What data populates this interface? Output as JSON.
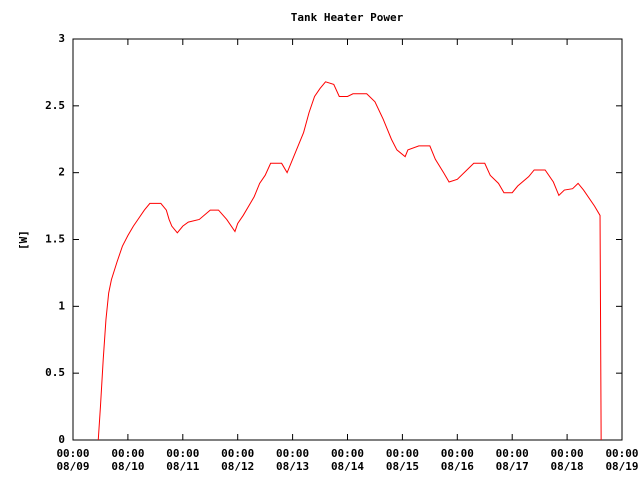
{
  "chart_data": {
    "type": "line",
    "title": "Tank Heater Power",
    "y_label": "[W]",
    "xlim": [
      0,
      10
    ],
    "ylim": [
      0,
      3
    ],
    "yticks": [
      0,
      0.5,
      1,
      1.5,
      2,
      2.5,
      3
    ],
    "xticks": [
      {
        "value": 0,
        "label": [
          "00:00",
          "08/09"
        ]
      },
      {
        "value": 1,
        "label": [
          "00:00",
          "08/10"
        ]
      },
      {
        "value": 2,
        "label": [
          "00:00",
          "08/11"
        ]
      },
      {
        "value": 3,
        "label": [
          "00:00",
          "08/12"
        ]
      },
      {
        "value": 4,
        "label": [
          "00:00",
          "08/13"
        ]
      },
      {
        "value": 5,
        "label": [
          "00:00",
          "08/14"
        ]
      },
      {
        "value": 6,
        "label": [
          "00:00",
          "08/15"
        ]
      },
      {
        "value": 7,
        "label": [
          "00:00",
          "08/16"
        ]
      },
      {
        "value": 8,
        "label": [
          "00:00",
          "08/17"
        ]
      },
      {
        "value": 9,
        "label": [
          "00:00",
          "08/18"
        ]
      },
      {
        "value": 10,
        "label": [
          "00:00",
          "08/19"
        ]
      }
    ],
    "series": [
      {
        "color": "#ff0000",
        "x": [
          0.46,
          0.5,
          0.55,
          0.6,
          0.65,
          0.7,
          0.8,
          0.9,
          1.0,
          1.1,
          1.2,
          1.3,
          1.4,
          1.6,
          1.7,
          1.75,
          1.8,
          1.9,
          2.0,
          2.1,
          2.3,
          2.5,
          2.65,
          2.8,
          2.95,
          3.0,
          3.1,
          3.2,
          3.3,
          3.4,
          3.5,
          3.6,
          3.8,
          3.9,
          4.0,
          4.1,
          4.2,
          4.3,
          4.4,
          4.5,
          4.6,
          4.75,
          4.85,
          5.0,
          5.1,
          5.35,
          5.5,
          5.65,
          5.8,
          5.9,
          6.05,
          6.1,
          6.3,
          6.5,
          6.6,
          6.75,
          6.85,
          7.0,
          7.2,
          7.3,
          7.5,
          7.6,
          7.75,
          7.85,
          8.0,
          8.1,
          8.3,
          8.4,
          8.6,
          8.75,
          8.85,
          8.95,
          9.1,
          9.2,
          9.3,
          9.5,
          9.6,
          9.62
        ],
        "values": [
          0,
          0.25,
          0.6,
          0.9,
          1.1,
          1.2,
          1.33,
          1.45,
          1.53,
          1.6,
          1.66,
          1.72,
          1.77,
          1.77,
          1.72,
          1.65,
          1.6,
          1.55,
          1.6,
          1.63,
          1.65,
          1.72,
          1.72,
          1.65,
          1.56,
          1.62,
          1.68,
          1.75,
          1.82,
          1.92,
          1.98,
          2.07,
          2.07,
          2.0,
          2.1,
          2.2,
          2.3,
          2.45,
          2.57,
          2.63,
          2.68,
          2.66,
          2.57,
          2.57,
          2.59,
          2.59,
          2.53,
          2.4,
          2.25,
          2.17,
          2.12,
          2.17,
          2.2,
          2.2,
          2.1,
          2.0,
          1.93,
          1.95,
          2.03,
          2.07,
          2.07,
          1.98,
          1.92,
          1.85,
          1.85,
          1.9,
          1.97,
          2.02,
          2.02,
          1.93,
          1.83,
          1.87,
          1.88,
          1.92,
          1.87,
          1.75,
          1.68,
          0
        ]
      }
    ]
  }
}
